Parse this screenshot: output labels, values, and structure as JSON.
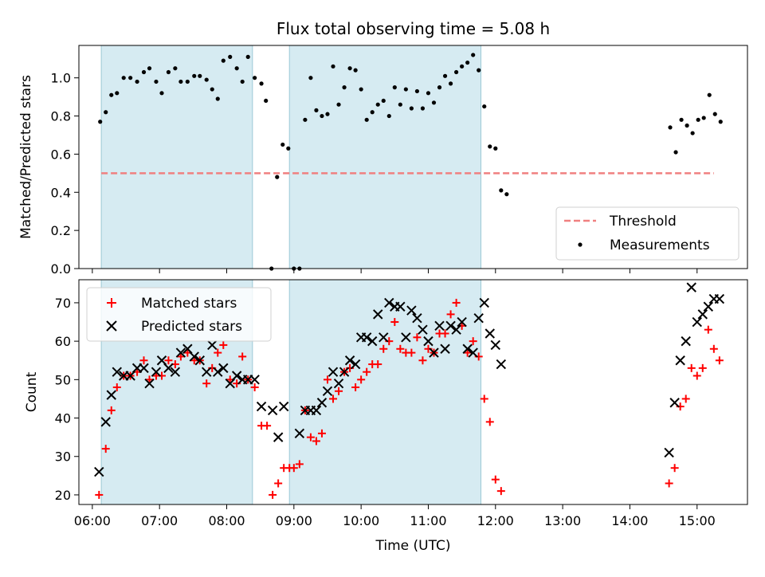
{
  "chart_data": [
    {
      "type": "scatter",
      "title": "Flux total observing time = 5.08 h",
      "xlabel": "",
      "ylabel": "Matched/Predicted stars",
      "xlim": [
        "05:48",
        "15:45"
      ],
      "ylim": [
        0,
        1.17
      ],
      "yticks": [
        0.0,
        0.2,
        0.4,
        0.6,
        0.8,
        1.0
      ],
      "ytick_labels": [
        "0.0",
        "0.2",
        "0.4",
        "0.6",
        "0.8",
        "1.0"
      ],
      "shaded_intervals": [
        [
          "06:08",
          "08:23"
        ],
        [
          "08:56",
          "11:47"
        ]
      ],
      "legend": {
        "position": "lower-right",
        "entries": [
          "Threshold",
          "Measurements"
        ]
      },
      "threshold": {
        "name": "Threshold",
        "y": 0.5,
        "x": [
          "06:08",
          "15:15"
        ],
        "color": "#f08080"
      },
      "series": [
        {
          "name": "Measurements",
          "color": "#000000",
          "points": [
            [
              "06:07",
              0.77
            ],
            [
              "06:12",
              0.82
            ],
            [
              "06:17",
              0.91
            ],
            [
              "06:22",
              0.92
            ],
            [
              "06:28",
              1.0
            ],
            [
              "06:34",
              1.0
            ],
            [
              "06:40",
              0.98
            ],
            [
              "06:46",
              1.03
            ],
            [
              "06:51",
              1.05
            ],
            [
              "06:57",
              0.98
            ],
            [
              "07:02",
              0.92
            ],
            [
              "07:08",
              1.03
            ],
            [
              "07:14",
              1.05
            ],
            [
              "07:19",
              0.98
            ],
            [
              "07:25",
              0.98
            ],
            [
              "07:31",
              1.01
            ],
            [
              "07:36",
              1.01
            ],
            [
              "07:42",
              0.99
            ],
            [
              "07:47",
              0.94
            ],
            [
              "07:52",
              0.89
            ],
            [
              "07:57",
              1.09
            ],
            [
              "08:03",
              1.11
            ],
            [
              "08:09",
              1.05
            ],
            [
              "08:14",
              0.98
            ],
            [
              "08:19",
              1.11
            ],
            [
              "08:25",
              1.0
            ],
            [
              "08:31",
              0.97
            ],
            [
              "08:35",
              0.88
            ],
            [
              "08:40",
              0.0
            ],
            [
              "08:45",
              0.48
            ],
            [
              "08:50",
              0.65
            ],
            [
              "08:55",
              0.63
            ],
            [
              "09:00",
              0.0
            ],
            [
              "09:05",
              0.0
            ],
            [
              "09:10",
              0.78
            ],
            [
              "09:15",
              1.0
            ],
            [
              "09:20",
              0.83
            ],
            [
              "09:25",
              0.8
            ],
            [
              "09:30",
              0.81
            ],
            [
              "09:35",
              1.06
            ],
            [
              "09:40",
              0.86
            ],
            [
              "09:45",
              0.95
            ],
            [
              "09:50",
              1.05
            ],
            [
              "09:55",
              1.04
            ],
            [
              "10:00",
              0.94
            ],
            [
              "10:05",
              0.78
            ],
            [
              "10:10",
              0.82
            ],
            [
              "10:15",
              0.86
            ],
            [
              "10:20",
              0.88
            ],
            [
              "10:25",
              0.8
            ],
            [
              "10:30",
              0.95
            ],
            [
              "10:35",
              0.86
            ],
            [
              "10:40",
              0.94
            ],
            [
              "10:45",
              0.84
            ],
            [
              "10:50",
              0.93
            ],
            [
              "10:55",
              0.84
            ],
            [
              "11:00",
              0.92
            ],
            [
              "11:05",
              0.87
            ],
            [
              "11:10",
              0.95
            ],
            [
              "11:15",
              1.01
            ],
            [
              "11:20",
              0.97
            ],
            [
              "11:25",
              1.03
            ],
            [
              "11:30",
              1.06
            ],
            [
              "11:35",
              1.08
            ],
            [
              "11:40",
              1.12
            ],
            [
              "11:45",
              1.04
            ],
            [
              "11:50",
              0.85
            ],
            [
              "11:55",
              0.64
            ],
            [
              "12:00",
              0.63
            ],
            [
              "12:05",
              0.41
            ],
            [
              "12:10",
              0.39
            ],
            [
              "14:36",
              0.74
            ],
            [
              "14:41",
              0.61
            ],
            [
              "14:46",
              0.78
            ],
            [
              "14:51",
              0.75
            ],
            [
              "14:56",
              0.71
            ],
            [
              "15:01",
              0.78
            ],
            [
              "15:06",
              0.79
            ],
            [
              "15:11",
              0.91
            ],
            [
              "15:16",
              0.81
            ],
            [
              "15:21",
              0.77
            ]
          ]
        }
      ]
    },
    {
      "type": "scatter",
      "title": "",
      "xlabel": "Time (UTC)",
      "ylabel": "Count",
      "xlim": [
        "05:48",
        "15:45"
      ],
      "ylim": [
        17.5,
        76
      ],
      "xticks": [
        "06:00",
        "07:00",
        "08:00",
        "09:00",
        "10:00",
        "11:00",
        "12:00",
        "13:00",
        "14:00",
        "15:00"
      ],
      "yticks": [
        20,
        30,
        40,
        50,
        60,
        70
      ],
      "ytick_labels": [
        "20",
        "30",
        "40",
        "50",
        "60",
        "70"
      ],
      "shaded_intervals": [
        [
          "06:08",
          "08:23"
        ],
        [
          "08:56",
          "11:47"
        ]
      ],
      "legend": {
        "position": "upper-left",
        "entries": [
          "Matched stars",
          "Predicted stars"
        ]
      },
      "series": [
        {
          "name": "Matched stars",
          "color": "#ff0000",
          "marker": "plus",
          "points": [
            [
              "06:06",
              20
            ],
            [
              "06:12",
              32
            ],
            [
              "06:17",
              42
            ],
            [
              "06:22",
              48
            ],
            [
              "06:28",
              51
            ],
            [
              "06:34",
              51
            ],
            [
              "06:40",
              52
            ],
            [
              "06:46",
              55
            ],
            [
              "06:51",
              50
            ],
            [
              "06:57",
              51
            ],
            [
              "07:02",
              51
            ],
            [
              "07:08",
              55
            ],
            [
              "07:14",
              54
            ],
            [
              "07:19",
              56
            ],
            [
              "07:25",
              57
            ],
            [
              "07:31",
              55
            ],
            [
              "07:36",
              55
            ],
            [
              "07:42",
              49
            ],
            [
              "07:47",
              53
            ],
            [
              "07:52",
              57
            ],
            [
              "07:57",
              59
            ],
            [
              "08:03",
              50
            ],
            [
              "08:09",
              49
            ],
            [
              "08:14",
              56
            ],
            [
              "08:19",
              50
            ],
            [
              "08:25",
              48
            ],
            [
              "08:31",
              38
            ],
            [
              "08:36",
              38
            ],
            [
              "08:41",
              20
            ],
            [
              "08:46",
              23
            ],
            [
              "08:51",
              27
            ],
            [
              "08:56",
              27
            ],
            [
              "09:00",
              27
            ],
            [
              "09:05",
              28
            ],
            [
              "09:10",
              42
            ],
            [
              "09:15",
              35
            ],
            [
              "09:20",
              34
            ],
            [
              "09:25",
              36
            ],
            [
              "09:30",
              50
            ],
            [
              "09:35",
              45
            ],
            [
              "09:40",
              47
            ],
            [
              "09:45",
              52
            ],
            [
              "09:50",
              53
            ],
            [
              "09:55",
              48
            ],
            [
              "10:00",
              50
            ],
            [
              "10:05",
              52
            ],
            [
              "10:10",
              54
            ],
            [
              "10:15",
              54
            ],
            [
              "10:20",
              58
            ],
            [
              "10:25",
              60
            ],
            [
              "10:30",
              65
            ],
            [
              "10:35",
              58
            ],
            [
              "10:40",
              57
            ],
            [
              "10:45",
              57
            ],
            [
              "10:50",
              61
            ],
            [
              "10:55",
              55
            ],
            [
              "11:00",
              58
            ],
            [
              "11:05",
              57
            ],
            [
              "11:10",
              62
            ],
            [
              "11:15",
              62
            ],
            [
              "11:20",
              67
            ],
            [
              "11:25",
              70
            ],
            [
              "11:30",
              64
            ],
            [
              "11:35",
              57
            ],
            [
              "11:40",
              60
            ],
            [
              "11:45",
              56
            ],
            [
              "11:50",
              45
            ],
            [
              "11:55",
              39
            ],
            [
              "12:00",
              24
            ],
            [
              "12:05",
              21
            ],
            [
              "14:35",
              23
            ],
            [
              "14:40",
              27
            ],
            [
              "14:45",
              43
            ],
            [
              "14:50",
              45
            ],
            [
              "14:55",
              53
            ],
            [
              "15:00",
              51
            ],
            [
              "15:05",
              53
            ],
            [
              "15:10",
              63
            ],
            [
              "15:15",
              58
            ],
            [
              "15:20",
              55
            ]
          ]
        },
        {
          "name": "Predicted stars",
          "color": "#000000",
          "marker": "x",
          "points": [
            [
              "06:06",
              26
            ],
            [
              "06:12",
              39
            ],
            [
              "06:17",
              46
            ],
            [
              "06:22",
              52
            ],
            [
              "06:28",
              51
            ],
            [
              "06:34",
              51
            ],
            [
              "06:40",
              53
            ],
            [
              "06:46",
              53
            ],
            [
              "06:51",
              49
            ],
            [
              "06:57",
              52
            ],
            [
              "07:02",
              55
            ],
            [
              "07:08",
              53
            ],
            [
              "07:14",
              52
            ],
            [
              "07:19",
              57
            ],
            [
              "07:25",
              58
            ],
            [
              "07:31",
              56
            ],
            [
              "07:36",
              55
            ],
            [
              "07:42",
              52
            ],
            [
              "07:47",
              59
            ],
            [
              "07:52",
              52
            ],
            [
              "07:57",
              53
            ],
            [
              "08:03",
              49
            ],
            [
              "08:09",
              51
            ],
            [
              "08:14",
              50
            ],
            [
              "08:19",
              50
            ],
            [
              "08:25",
              50
            ],
            [
              "08:31",
              43
            ],
            [
              "08:41",
              42
            ],
            [
              "08:46",
              35
            ],
            [
              "08:51",
              43
            ],
            [
              "09:05",
              36
            ],
            [
              "09:10",
              42
            ],
            [
              "09:15",
              42
            ],
            [
              "09:20",
              42
            ],
            [
              "09:25",
              44
            ],
            [
              "09:30",
              47
            ],
            [
              "09:35",
              52
            ],
            [
              "09:40",
              49
            ],
            [
              "09:45",
              52
            ],
            [
              "09:50",
              55
            ],
            [
              "09:55",
              54
            ],
            [
              "10:00",
              61
            ],
            [
              "10:05",
              61
            ],
            [
              "10:10",
              60
            ],
            [
              "10:15",
              67
            ],
            [
              "10:20",
              61
            ],
            [
              "10:25",
              70
            ],
            [
              "10:30",
              69
            ],
            [
              "10:35",
              69
            ],
            [
              "10:40",
              61
            ],
            [
              "10:45",
              68
            ],
            [
              "10:50",
              66
            ],
            [
              "10:55",
              63
            ],
            [
              "11:00",
              60
            ],
            [
              "11:05",
              57
            ],
            [
              "11:10",
              64
            ],
            [
              "11:15",
              58
            ],
            [
              "11:20",
              64
            ],
            [
              "11:25",
              63
            ],
            [
              "11:30",
              65
            ],
            [
              "11:35",
              58
            ],
            [
              "11:40",
              57
            ],
            [
              "11:45",
              66
            ],
            [
              "11:50",
              70
            ],
            [
              "11:55",
              62
            ],
            [
              "12:00",
              59
            ],
            [
              "12:05",
              54
            ],
            [
              "14:35",
              31
            ],
            [
              "14:40",
              44
            ],
            [
              "14:45",
              55
            ],
            [
              "14:50",
              60
            ],
            [
              "14:55",
              74
            ],
            [
              "15:00",
              65
            ],
            [
              "15:05",
              67
            ],
            [
              "15:10",
              69
            ],
            [
              "15:15",
              71
            ],
            [
              "15:20",
              71
            ]
          ]
        }
      ]
    }
  ]
}
